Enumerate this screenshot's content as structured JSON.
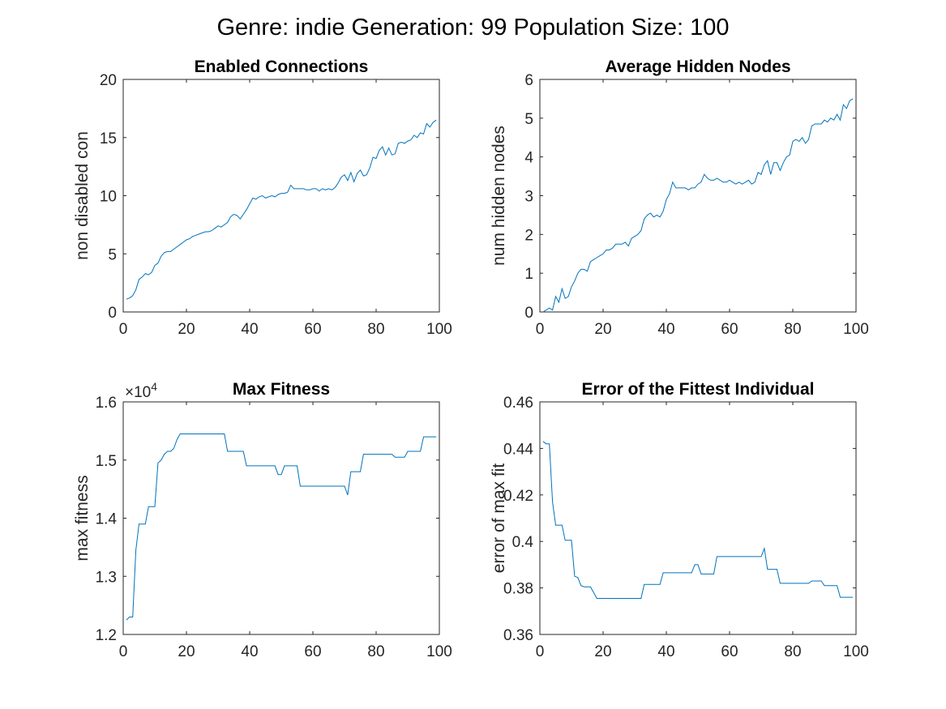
{
  "figure": {
    "title": "Genre: indie Generation: 99 Population Size: 100"
  },
  "chart_data": [
    {
      "type": "line",
      "title": "Enabled Connections",
      "xlabel": "",
      "ylabel": "non disabled con",
      "xlim": [
        0,
        100
      ],
      "ylim": [
        0,
        20
      ],
      "xticks": [
        0,
        20,
        40,
        60,
        80,
        100
      ],
      "yticks": [
        0,
        5,
        10,
        15,
        20
      ],
      "xtick_labels": [
        "0",
        "20",
        "40",
        "60",
        "80",
        "100"
      ],
      "ytick_labels": [
        "0",
        "5",
        "10",
        "15",
        "20"
      ],
      "exponent_label": "",
      "color": "#0072bd",
      "x": [
        1,
        2,
        3,
        4,
        5,
        6,
        7,
        8,
        9,
        10,
        11,
        12,
        13,
        14,
        15,
        16,
        17,
        18,
        19,
        20,
        21,
        22,
        23,
        24,
        25,
        26,
        27,
        28,
        29,
        30,
        31,
        32,
        33,
        34,
        35,
        36,
        37,
        38,
        39,
        40,
        41,
        42,
        43,
        44,
        45,
        46,
        47,
        48,
        49,
        50,
        51,
        52,
        53,
        54,
        55,
        56,
        57,
        58,
        59,
        60,
        61,
        62,
        63,
        64,
        65,
        66,
        67,
        68,
        69,
        70,
        71,
        72,
        73,
        74,
        75,
        76,
        77,
        78,
        79,
        80,
        81,
        82,
        83,
        84,
        85,
        86,
        87,
        88,
        89,
        90,
        91,
        92,
        93,
        94,
        95,
        96,
        97,
        98,
        99
      ],
      "y": [
        1.1,
        1.2,
        1.4,
        1.9,
        2.8,
        3.0,
        3.3,
        3.2,
        3.4,
        4.0,
        4.2,
        4.8,
        5.1,
        5.2,
        5.2,
        5.4,
        5.6,
        5.8,
        6.0,
        6.2,
        6.3,
        6.5,
        6.6,
        6.7,
        6.8,
        6.9,
        6.9,
        7.0,
        7.2,
        7.4,
        7.3,
        7.5,
        7.7,
        8.2,
        8.4,
        8.3,
        8.0,
        8.4,
        8.8,
        9.3,
        9.8,
        9.7,
        9.9,
        10.0,
        9.8,
        9.9,
        10.0,
        9.9,
        10.1,
        10.2,
        10.2,
        10.3,
        10.9,
        10.6,
        10.6,
        10.6,
        10.6,
        10.5,
        10.5,
        10.6,
        10.6,
        10.4,
        10.6,
        10.5,
        10.6,
        10.5,
        10.7,
        11.1,
        11.6,
        11.8,
        11.3,
        12.0,
        11.2,
        11.9,
        12.2,
        11.7,
        11.8,
        12.4,
        13.3,
        13.2,
        13.9,
        14.2,
        13.5,
        14.1,
        13.5,
        13.6,
        14.5,
        14.6,
        14.5,
        14.7,
        14.8,
        15.2,
        15.0,
        15.4,
        15.3,
        16.2,
        15.9,
        16.3,
        16.5
      ]
    },
    {
      "type": "line",
      "title": "Average Hidden Nodes",
      "xlabel": "",
      "ylabel": "num hidden nodes",
      "xlim": [
        0,
        100
      ],
      "ylim": [
        0,
        6
      ],
      "xticks": [
        0,
        20,
        40,
        60,
        80,
        100
      ],
      "yticks": [
        0,
        1,
        2,
        3,
        4,
        5,
        6
      ],
      "xtick_labels": [
        "0",
        "20",
        "40",
        "60",
        "80",
        "100"
      ],
      "ytick_labels": [
        "0",
        "1",
        "2",
        "3",
        "4",
        "5",
        "6"
      ],
      "exponent_label": "",
      "color": "#0072bd",
      "x": [
        1,
        2,
        3,
        4,
        5,
        6,
        7,
        8,
        9,
        10,
        11,
        12,
        13,
        14,
        15,
        16,
        17,
        18,
        19,
        20,
        21,
        22,
        23,
        24,
        25,
        26,
        27,
        28,
        29,
        30,
        31,
        32,
        33,
        34,
        35,
        36,
        37,
        38,
        39,
        40,
        41,
        42,
        43,
        44,
        45,
        46,
        47,
        48,
        49,
        50,
        51,
        52,
        53,
        54,
        55,
        56,
        57,
        58,
        59,
        60,
        61,
        62,
        63,
        64,
        65,
        66,
        67,
        68,
        69,
        70,
        71,
        72,
        73,
        74,
        75,
        76,
        77,
        78,
        79,
        80,
        81,
        82,
        83,
        84,
        85,
        86,
        87,
        88,
        89,
        90,
        91,
        92,
        93,
        94,
        95,
        96,
        97,
        98,
        99
      ],
      "y": [
        0.0,
        0.05,
        0.1,
        0.05,
        0.4,
        0.25,
        0.6,
        0.35,
        0.4,
        0.65,
        0.8,
        1.0,
        1.1,
        1.1,
        1.05,
        1.3,
        1.35,
        1.4,
        1.45,
        1.5,
        1.6,
        1.6,
        1.65,
        1.75,
        1.75,
        1.75,
        1.8,
        1.7,
        1.9,
        1.95,
        2.0,
        2.1,
        2.4,
        2.5,
        2.55,
        2.45,
        2.5,
        2.45,
        2.6,
        2.9,
        3.05,
        3.35,
        3.2,
        3.2,
        3.2,
        3.2,
        3.15,
        3.2,
        3.2,
        3.3,
        3.35,
        3.55,
        3.45,
        3.4,
        3.4,
        3.45,
        3.4,
        3.35,
        3.35,
        3.4,
        3.35,
        3.3,
        3.35,
        3.3,
        3.35,
        3.4,
        3.3,
        3.35,
        3.6,
        3.55,
        3.8,
        3.9,
        3.55,
        3.85,
        3.85,
        3.65,
        3.85,
        4.0,
        4.05,
        4.4,
        4.45,
        4.4,
        4.5,
        4.35,
        4.45,
        4.8,
        4.85,
        4.85,
        4.85,
        4.95,
        4.9,
        5.0,
        4.95,
        5.1,
        4.95,
        5.35,
        5.25,
        5.45,
        5.5
      ]
    },
    {
      "type": "line",
      "title": "Max Fitness",
      "xlabel": "",
      "ylabel": "max fitness",
      "xlim": [
        0,
        100
      ],
      "ylim": [
        1.2,
        1.6
      ],
      "xticks": [
        0,
        20,
        40,
        60,
        80,
        100
      ],
      "yticks": [
        1.2,
        1.3,
        1.4,
        1.5,
        1.6
      ],
      "xtick_labels": [
        "0",
        "20",
        "40",
        "60",
        "80",
        "100"
      ],
      "ytick_labels": [
        "1.2",
        "1.3",
        "1.4",
        "1.5",
        "1.6"
      ],
      "exponent_label": "10",
      "exponent": "4",
      "color": "#0072bd",
      "x": [
        1,
        2,
        3,
        4,
        5,
        6,
        7,
        8,
        9,
        10,
        11,
        12,
        13,
        14,
        15,
        16,
        17,
        18,
        19,
        20,
        21,
        22,
        23,
        24,
        25,
        26,
        27,
        28,
        29,
        30,
        31,
        32,
        33,
        34,
        35,
        36,
        37,
        38,
        39,
        40,
        41,
        42,
        43,
        44,
        45,
        46,
        47,
        48,
        49,
        50,
        51,
        52,
        53,
        54,
        55,
        56,
        57,
        58,
        59,
        60,
        61,
        62,
        63,
        64,
        65,
        66,
        67,
        68,
        69,
        70,
        71,
        72,
        73,
        74,
        75,
        76,
        77,
        78,
        79,
        80,
        81,
        82,
        83,
        84,
        85,
        86,
        87,
        88,
        89,
        90,
        91,
        92,
        93,
        94,
        95,
        96,
        97,
        98,
        99
      ],
      "y": [
        1.225,
        1.23,
        1.23,
        1.345,
        1.39,
        1.39,
        1.39,
        1.42,
        1.42,
        1.42,
        1.495,
        1.5,
        1.51,
        1.515,
        1.515,
        1.52,
        1.535,
        1.545,
        1.545,
        1.545,
        1.545,
        1.545,
        1.545,
        1.545,
        1.545,
        1.545,
        1.545,
        1.545,
        1.545,
        1.545,
        1.545,
        1.545,
        1.515,
        1.515,
        1.515,
        1.515,
        1.515,
        1.515,
        1.49,
        1.49,
        1.49,
        1.49,
        1.49,
        1.49,
        1.49,
        1.49,
        1.49,
        1.49,
        1.475,
        1.475,
        1.49,
        1.49,
        1.49,
        1.49,
        1.49,
        1.455,
        1.455,
        1.455,
        1.455,
        1.455,
        1.455,
        1.455,
        1.455,
        1.455,
        1.455,
        1.455,
        1.455,
        1.455,
        1.455,
        1.455,
        1.44,
        1.48,
        1.48,
        1.48,
        1.48,
        1.51,
        1.51,
        1.51,
        1.51,
        1.51,
        1.51,
        1.51,
        1.51,
        1.51,
        1.51,
        1.505,
        1.505,
        1.505,
        1.505,
        1.515,
        1.515,
        1.515,
        1.515,
        1.515,
        1.54,
        1.54,
        1.54,
        1.54,
        1.54
      ]
    },
    {
      "type": "line",
      "title": "Error of the Fittest Individual",
      "xlabel": "",
      "ylabel": "error of max fit",
      "xlim": [
        0,
        100
      ],
      "ylim": [
        0.36,
        0.46
      ],
      "xticks": [
        0,
        20,
        40,
        60,
        80,
        100
      ],
      "yticks": [
        0.36,
        0.38,
        0.4,
        0.42,
        0.44,
        0.46
      ],
      "xtick_labels": [
        "0",
        "20",
        "40",
        "60",
        "80",
        "100"
      ],
      "ytick_labels": [
        "0.36",
        "0.38",
        "0.4",
        "0.42",
        "0.44",
        "0.46"
      ],
      "exponent_label": "",
      "color": "#0072bd",
      "x": [
        1,
        2,
        3,
        4,
        5,
        6,
        7,
        8,
        9,
        10,
        11,
        12,
        13,
        14,
        15,
        16,
        17,
        18,
        19,
        20,
        21,
        22,
        23,
        24,
        25,
        26,
        27,
        28,
        29,
        30,
        31,
        32,
        33,
        34,
        35,
        36,
        37,
        38,
        39,
        40,
        41,
        42,
        43,
        44,
        45,
        46,
        47,
        48,
        49,
        50,
        51,
        52,
        53,
        54,
        55,
        56,
        57,
        58,
        59,
        60,
        61,
        62,
        63,
        64,
        65,
        66,
        67,
        68,
        69,
        70,
        71,
        72,
        73,
        74,
        75,
        76,
        77,
        78,
        79,
        80,
        81,
        82,
        83,
        84,
        85,
        86,
        87,
        88,
        89,
        90,
        91,
        92,
        93,
        94,
        95,
        96,
        97,
        98,
        99
      ],
      "y": [
        0.443,
        0.442,
        0.442,
        0.417,
        0.407,
        0.407,
        0.407,
        0.4005,
        0.4005,
        0.4005,
        0.385,
        0.3845,
        0.381,
        0.3805,
        0.3805,
        0.3805,
        0.378,
        0.3755,
        0.3755,
        0.3755,
        0.3755,
        0.3755,
        0.3755,
        0.3755,
        0.3755,
        0.3755,
        0.3755,
        0.3755,
        0.3755,
        0.3755,
        0.3755,
        0.3755,
        0.3815,
        0.3815,
        0.3815,
        0.3815,
        0.3815,
        0.3815,
        0.3865,
        0.3865,
        0.3865,
        0.3865,
        0.3865,
        0.3865,
        0.3865,
        0.3865,
        0.3865,
        0.3865,
        0.39,
        0.39,
        0.386,
        0.386,
        0.386,
        0.386,
        0.386,
        0.3935,
        0.3935,
        0.3935,
        0.3935,
        0.3935,
        0.3935,
        0.3935,
        0.3935,
        0.3935,
        0.3935,
        0.3935,
        0.3935,
        0.3935,
        0.3935,
        0.3935,
        0.397,
        0.388,
        0.388,
        0.388,
        0.388,
        0.382,
        0.382,
        0.382,
        0.382,
        0.382,
        0.382,
        0.382,
        0.382,
        0.382,
        0.382,
        0.383,
        0.383,
        0.383,
        0.383,
        0.381,
        0.381,
        0.381,
        0.381,
        0.381,
        0.376,
        0.376,
        0.376,
        0.376,
        0.376
      ]
    }
  ]
}
